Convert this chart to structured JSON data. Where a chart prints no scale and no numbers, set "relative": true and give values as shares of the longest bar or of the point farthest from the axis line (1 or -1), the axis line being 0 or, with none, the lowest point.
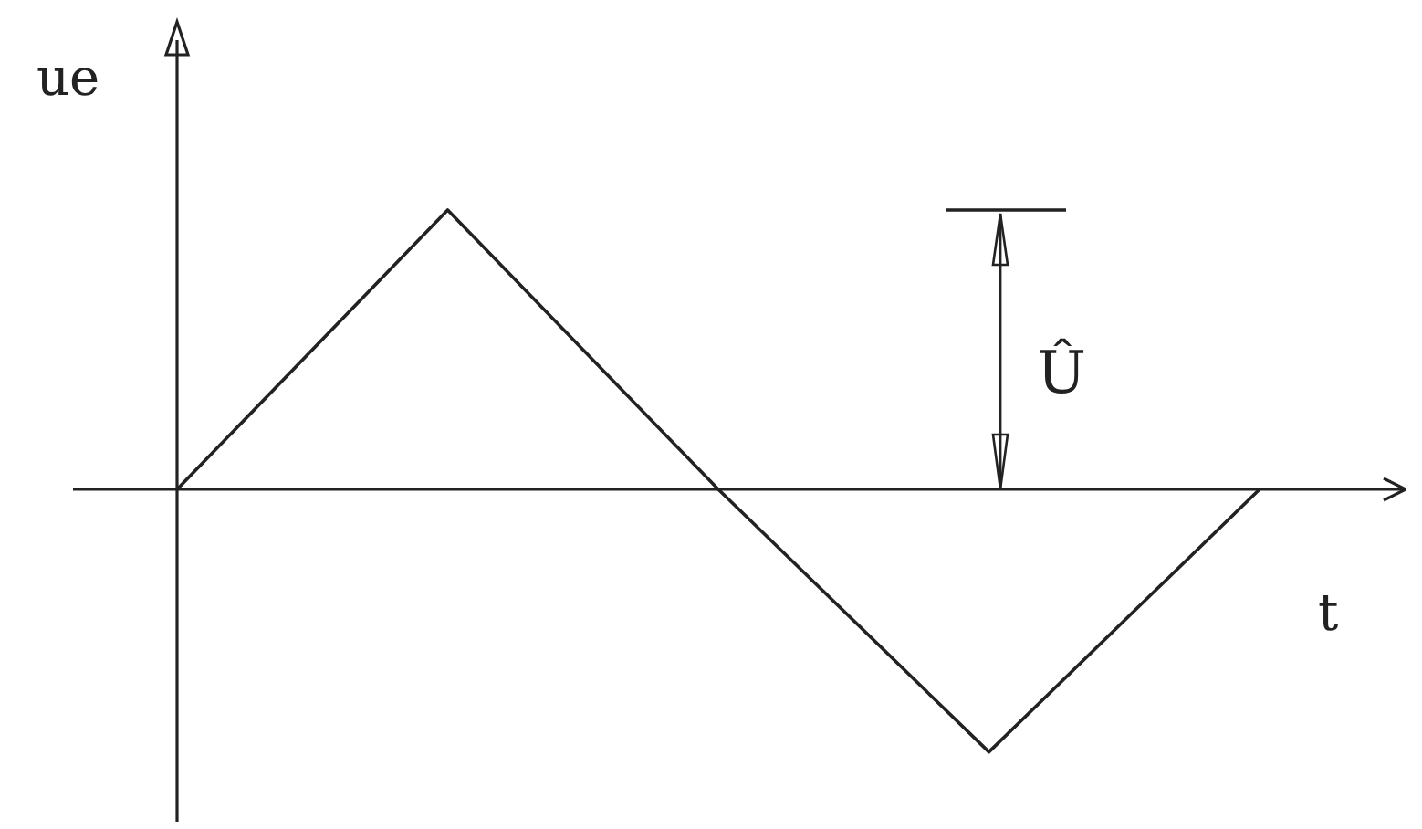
{
  "chart_data": {
    "type": "line",
    "relative": true,
    "xlabel": "t",
    "ylabel": "ue",
    "categories": [
      null,
      null,
      null,
      null,
      null
    ],
    "series": [
      {
        "color": "#222222",
        "values": [
          0,
          1,
          0,
          -0.94,
          0
        ]
      }
    ],
    "annotations": [
      "Û"
    ],
    "marker": "none",
    "line_style": "solid"
  }
}
